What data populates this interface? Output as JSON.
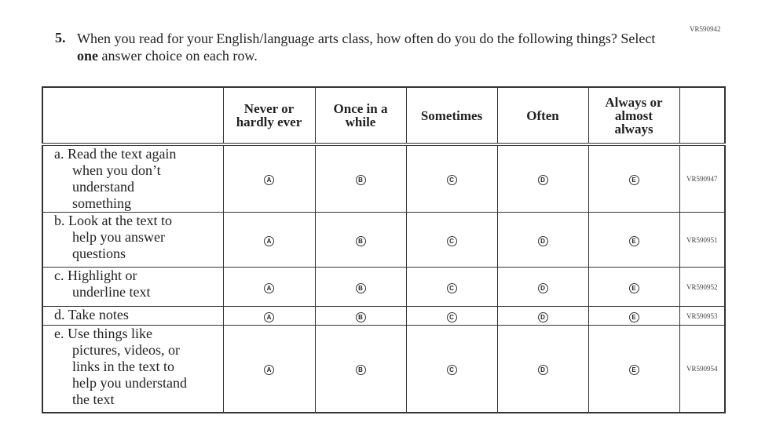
{
  "question_id": "VR590942",
  "question": {
    "number": "5.",
    "text_before": "When you read for your English/language arts class, how often do you do the following things? Select ",
    "text_bold": "one",
    "text_after": " answer choice on each row."
  },
  "columns": [
    {
      "lines": [
        "Never or",
        "hardly ever"
      ],
      "letter": "A"
    },
    {
      "lines": [
        "Once in a",
        "while"
      ],
      "letter": "B"
    },
    {
      "lines": [
        "Sometimes"
      ],
      "letter": "C"
    },
    {
      "lines": [
        "Often"
      ],
      "letter": "D"
    },
    {
      "lines": [
        "Always or",
        "almost",
        "always"
      ],
      "letter": "E"
    }
  ],
  "rows": [
    {
      "lines": [
        "a. Read the text again",
        "when you don’t",
        "understand",
        "something"
      ],
      "id": "VR590947"
    },
    {
      "lines": [
        "b. Look at the text to",
        "help you answer",
        "questions"
      ],
      "id": "VR590951"
    },
    {
      "lines": [
        "c. Highlight or",
        "underline text"
      ],
      "id": "VR590952"
    },
    {
      "lines": [
        "d. Take notes"
      ],
      "id": "VR590953"
    },
    {
      "lines": [
        "e. Use things like",
        "pictures, videos, or",
        "links in the text to",
        "help you understand",
        "the text"
      ],
      "id": "VR590954"
    }
  ]
}
